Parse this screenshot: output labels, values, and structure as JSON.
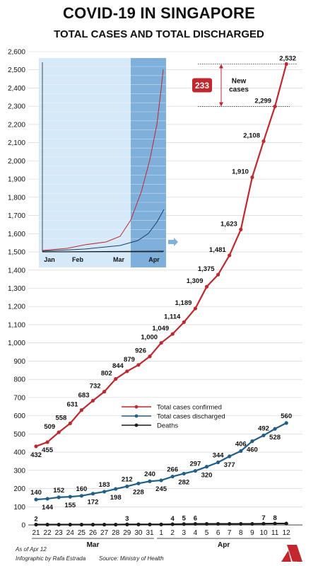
{
  "title": "COVID-19 IN SINGAPORE",
  "subtitle": "TOTAL CASES AND TOTAL DISCHARGED",
  "footer": {
    "as_of": "As of Apr 12",
    "credit": "Infographic by Rafa Estrada",
    "source": "Source: Ministry of Health",
    "logo_text": "cna"
  },
  "colors": {
    "confirmed": "#c1272d",
    "discharged": "#1f5f8b",
    "deaths": "#1a1a1a",
    "inset_light": "#d6e9f8",
    "inset_dark": "#7fb0dc",
    "callout": "#c1272d"
  },
  "callout": {
    "value": "233",
    "label_line1": "New",
    "label_line2": "cases"
  },
  "inset": {
    "month_labels": [
      "Jan",
      "Feb",
      "Mar",
      "Apr"
    ]
  },
  "chart_data": {
    "type": "line",
    "title": "COVID-19 IN SINGAPORE",
    "subtitle": "TOTAL CASES AND TOTAL DISCHARGED",
    "x": [
      "21",
      "22",
      "23",
      "24",
      "25",
      "26",
      "27",
      "28",
      "29",
      "30",
      "31",
      "1",
      "2",
      "3",
      "4",
      "5",
      "6",
      "7",
      "8",
      "9",
      "10",
      "11",
      "12"
    ],
    "month_groups": [
      {
        "label": "Mar",
        "from": 0,
        "to": 10
      },
      {
        "label": "Apr",
        "from": 11,
        "to": 22
      }
    ],
    "ylim": [
      0,
      2600
    ],
    "y_ticks": [
      "0",
      "100",
      "200",
      "300",
      "400",
      "500",
      "600",
      "700",
      "800",
      "900",
      "1,000",
      "1,100",
      "1,200",
      "1,300",
      "1,400",
      "1,500",
      "1,600",
      "1,700",
      "1,800",
      "1,900",
      "2,000",
      "2,100",
      "2,200",
      "2,300",
      "2,400",
      "2,500",
      "2,600"
    ],
    "grid": true,
    "legend_position": "center-right",
    "series": [
      {
        "name": "Total cases confirmed",
        "color": "#c1272d",
        "values": [
          432,
          455,
          509,
          558,
          631,
          683,
          732,
          802,
          844,
          879,
          926,
          1000,
          1049,
          1114,
          1189,
          1309,
          1375,
          1481,
          1623,
          1910,
          2108,
          2299,
          2532
        ],
        "labels": [
          "432",
          "455",
          "509",
          "558",
          "631",
          "683",
          "732",
          "802",
          "844",
          "879",
          "926",
          "1,000",
          "1,049",
          "1,114",
          "1,189",
          "1,309",
          "1,375",
          "1,481",
          "1,623",
          "1,910",
          "2,108",
          "2,299",
          "2,532"
        ]
      },
      {
        "name": "Total cases discharged",
        "color": "#1f5f8b",
        "values": [
          140,
          144,
          152,
          155,
          160,
          172,
          183,
          198,
          212,
          228,
          240,
          245,
          266,
          282,
          297,
          320,
          344,
          377,
          406,
          460,
          492,
          528,
          560
        ],
        "labels": [
          "140",
          "144",
          "152",
          "155",
          "160",
          "172",
          "183",
          "198",
          "212",
          "228",
          "240",
          "245",
          "266",
          "282",
          "297",
          "320",
          "344",
          "377",
          "406",
          "460",
          "492",
          "528",
          "560"
        ]
      },
      {
        "name": "Deaths",
        "color": "#1a1a1a",
        "values": [
          2,
          2,
          2,
          2,
          2,
          2,
          2,
          2,
          3,
          3,
          3,
          3,
          4,
          5,
          6,
          6,
          6,
          6,
          6,
          6,
          7,
          8,
          8
        ],
        "labels": [
          "2",
          "",
          "",
          "",
          "",
          "",
          "",
          "",
          "3",
          "",
          "",
          "",
          "4",
          "5",
          "6",
          "",
          "",
          "",
          "",
          "",
          "7",
          "8",
          ""
        ]
      }
    ]
  }
}
